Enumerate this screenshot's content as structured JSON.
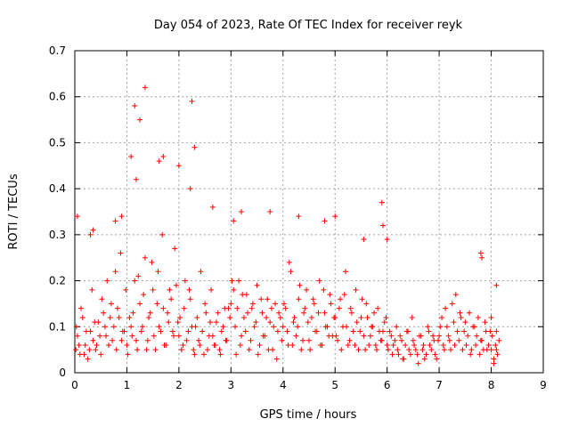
{
  "chart_data": {
    "type": "scatter",
    "title": "Day 054 of 2023, Rate Of TEC Index for receiver reyk",
    "xlabel": "GPS time / hours",
    "ylabel": "ROTI / TECUs",
    "xlim": [
      0,
      9
    ],
    "ylim": [
      0,
      0.7
    ],
    "x_ticks": [
      "0",
      "1",
      "2",
      "3",
      "4",
      "5",
      "6",
      "7",
      "8",
      "9"
    ],
    "y_ticks": [
      "0",
      "0.1",
      "0.2",
      "0.3",
      "0.4",
      "0.5",
      "0.6",
      "0.7"
    ],
    "grid": true,
    "marker": "+",
    "series": [
      {
        "name": "ROTI",
        "color": "#ff0000",
        "x": [
          0.02,
          0.05,
          0.1,
          0.15,
          0.2,
          0.25,
          0.3,
          0.35,
          0.4,
          0.45,
          0.5,
          0.55,
          0.6,
          0.65,
          0.7,
          0.75,
          0.8,
          0.85,
          0.9,
          0.95,
          0.03,
          0.08,
          0.12,
          0.18,
          0.22,
          0.28,
          0.33,
          0.38,
          0.42,
          0.48,
          0.52,
          0.58,
          0.62,
          0.68,
          0.72,
          0.78,
          0.82,
          0.88,
          0.92,
          0.98,
          1.0,
          1.05,
          1.1,
          1.15,
          1.2,
          1.25,
          1.3,
          1.35,
          1.4,
          1.45,
          1.5,
          1.55,
          1.6,
          1.65,
          1.7,
          1.75,
          1.8,
          1.85,
          1.9,
          1.95,
          1.02,
          1.08,
          1.12,
          1.18,
          1.22,
          1.28,
          1.32,
          1.38,
          1.42,
          1.48,
          1.52,
          1.58,
          1.62,
          1.68,
          1.72,
          1.78,
          1.82,
          1.88,
          1.92,
          1.98,
          2.0,
          2.05,
          2.1,
          2.15,
          2.2,
          2.25,
          2.3,
          2.35,
          2.4,
          2.45,
          2.5,
          2.55,
          2.6,
          2.65,
          2.7,
          2.75,
          2.8,
          2.85,
          2.9,
          2.95,
          2.02,
          2.08,
          2.12,
          2.18,
          2.22,
          2.28,
          2.32,
          2.38,
          2.42,
          2.48,
          2.52,
          2.58,
          2.62,
          2.68,
          2.72,
          2.78,
          2.82,
          2.88,
          2.92,
          2.98,
          3.0,
          3.05,
          3.1,
          3.15,
          3.2,
          3.25,
          3.3,
          3.35,
          3.4,
          3.45,
          3.5,
          3.55,
          3.6,
          3.65,
          3.7,
          3.75,
          3.8,
          3.85,
          3.9,
          3.95,
          3.02,
          3.08,
          3.12,
          3.18,
          3.22,
          3.28,
          3.32,
          3.38,
          3.42,
          3.48,
          3.52,
          3.58,
          3.62,
          3.68,
          3.72,
          3.78,
          3.82,
          3.88,
          3.92,
          3.98,
          4.0,
          4.05,
          4.1,
          4.15,
          4.2,
          4.25,
          4.3,
          4.35,
          4.4,
          4.45,
          4.5,
          4.55,
          4.6,
          4.65,
          4.7,
          4.75,
          4.8,
          4.85,
          4.9,
          4.95,
          4.02,
          4.08,
          4.12,
          4.18,
          4.22,
          4.28,
          4.32,
          4.38,
          4.42,
          4.48,
          4.52,
          4.58,
          4.62,
          4.68,
          4.72,
          4.78,
          4.82,
          4.88,
          4.92,
          4.98,
          5.0,
          5.05,
          5.1,
          5.15,
          5.2,
          5.25,
          5.3,
          5.35,
          5.4,
          5.45,
          5.5,
          5.55,
          5.6,
          5.65,
          5.7,
          5.75,
          5.8,
          5.85,
          5.9,
          5.95,
          5.02,
          5.08,
          5.12,
          5.18,
          5.22,
          5.28,
          5.32,
          5.38,
          5.42,
          5.48,
          5.52,
          5.58,
          5.62,
          5.68,
          5.72,
          5.78,
          5.82,
          5.88,
          5.92,
          5.98,
          6.0,
          6.05,
          6.1,
          6.15,
          6.2,
          6.25,
          6.3,
          6.35,
          6.4,
          6.45,
          6.5,
          6.55,
          6.6,
          6.65,
          6.7,
          6.75,
          6.8,
          6.85,
          6.9,
          6.95,
          6.02,
          6.08,
          6.12,
          6.18,
          6.22,
          6.28,
          6.32,
          6.38,
          6.42,
          6.48,
          6.52,
          6.58,
          6.62,
          6.68,
          6.72,
          6.78,
          6.82,
          6.88,
          6.92,
          6.98,
          7.0,
          7.05,
          7.1,
          7.15,
          7.2,
          7.25,
          7.3,
          7.35,
          7.4,
          7.45,
          7.5,
          7.55,
          7.6,
          7.65,
          7.7,
          7.75,
          7.8,
          7.85,
          7.9,
          7.95,
          7.02,
          7.08,
          7.12,
          7.18,
          7.22,
          7.28,
          7.32,
          7.38,
          7.42,
          7.48,
          7.52,
          7.58,
          7.62,
          7.68,
          7.72,
          7.78,
          7.82,
          7.88,
          7.92,
          7.98,
          8.0,
          8.02,
          8.05,
          8.08,
          8.1,
          8.12,
          8.15,
          8.0,
          8.05,
          8.1,
          0.05,
          0.35,
          0.9,
          1.35,
          1.15,
          1.25,
          1.7,
          2.0,
          2.25,
          2.3,
          1.08,
          1.18,
          0.78,
          1.62,
          2.22,
          3.2,
          3.75,
          4.3,
          5.0,
          5.9,
          5.92,
          6.0,
          7.8,
          7.82,
          8.1,
          2.65,
          3.05,
          4.8,
          5.55,
          0.3
        ],
        "y": [
          0.05,
          0.08,
          0.04,
          0.12,
          0.06,
          0.03,
          0.09,
          0.07,
          0.05,
          0.11,
          0.04,
          0.13,
          0.08,
          0.06,
          0.15,
          0.1,
          0.05,
          0.12,
          0.07,
          0.09,
          0.1,
          0.06,
          0.14,
          0.04,
          0.09,
          0.05,
          0.18,
          0.11,
          0.06,
          0.08,
          0.16,
          0.1,
          0.2,
          0.12,
          0.07,
          0.22,
          0.14,
          0.26,
          0.09,
          0.18,
          0.06,
          0.12,
          0.08,
          0.2,
          0.05,
          0.15,
          0.1,
          0.25,
          0.07,
          0.13,
          0.18,
          0.05,
          0.22,
          0.09,
          0.14,
          0.06,
          0.11,
          0.16,
          0.08,
          0.19,
          0.04,
          0.1,
          0.13,
          0.07,
          0.21,
          0.09,
          0.17,
          0.05,
          0.12,
          0.24,
          0.08,
          0.15,
          0.1,
          0.3,
          0.06,
          0.13,
          0.18,
          0.09,
          0.27,
          0.11,
          0.08,
          0.05,
          0.14,
          0.07,
          0.18,
          0.1,
          0.04,
          0.12,
          0.06,
          0.09,
          0.15,
          0.05,
          0.11,
          0.08,
          0.06,
          0.13,
          0.04,
          0.1,
          0.07,
          0.14,
          0.12,
          0.06,
          0.2,
          0.09,
          0.16,
          0.05,
          0.1,
          0.07,
          0.22,
          0.04,
          0.13,
          0.08,
          0.18,
          0.06,
          0.11,
          0.05,
          0.09,
          0.14,
          0.07,
          0.12,
          0.15,
          0.18,
          0.04,
          0.2,
          0.08,
          0.12,
          0.17,
          0.05,
          0.14,
          0.1,
          0.19,
          0.06,
          0.13,
          0.08,
          0.16,
          0.11,
          0.05,
          0.15,
          0.09,
          0.12,
          0.2,
          0.1,
          0.14,
          0.06,
          0.17,
          0.09,
          0.13,
          0.07,
          0.15,
          0.11,
          0.04,
          0.16,
          0.08,
          0.12,
          0.05,
          0.14,
          0.1,
          0.03,
          0.13,
          0.07,
          0.1,
          0.14,
          0.06,
          0.22,
          0.11,
          0.08,
          0.16,
          0.05,
          0.13,
          0.18,
          0.07,
          0.12,
          0.15,
          0.09,
          0.2,
          0.06,
          0.13,
          0.1,
          0.17,
          0.08,
          0.15,
          0.09,
          0.24,
          0.06,
          0.12,
          0.1,
          0.19,
          0.07,
          0.14,
          0.11,
          0.05,
          0.16,
          0.09,
          0.13,
          0.06,
          0.18,
          0.1,
          0.08,
          0.15,
          0.12,
          0.12,
          0.07,
          0.16,
          0.1,
          0.22,
          0.06,
          0.14,
          0.09,
          0.18,
          0.05,
          0.12,
          0.08,
          0.15,
          0.06,
          0.1,
          0.13,
          0.05,
          0.09,
          0.07,
          0.11,
          0.08,
          0.14,
          0.05,
          0.17,
          0.1,
          0.07,
          0.13,
          0.06,
          0.11,
          0.09,
          0.16,
          0.05,
          0.12,
          0.08,
          0.1,
          0.06,
          0.14,
          0.07,
          0.09,
          0.12,
          0.06,
          0.09,
          0.04,
          0.07,
          0.05,
          0.08,
          0.03,
          0.06,
          0.09,
          0.04,
          0.07,
          0.05,
          0.02,
          0.08,
          0.06,
          0.04,
          0.09,
          0.05,
          0.07,
          0.03,
          0.05,
          0.08,
          0.06,
          0.1,
          0.04,
          0.07,
          0.03,
          0.09,
          0.05,
          0.12,
          0.06,
          0.04,
          0.08,
          0.05,
          0.03,
          0.1,
          0.06,
          0.08,
          0.04,
          0.07,
          0.08,
          0.12,
          0.05,
          0.1,
          0.07,
          0.15,
          0.06,
          0.09,
          0.13,
          0.05,
          0.11,
          0.08,
          0.04,
          0.1,
          0.06,
          0.12,
          0.07,
          0.05,
          0.09,
          0.06,
          0.1,
          0.06,
          0.14,
          0.08,
          0.05,
          0.11,
          0.17,
          0.07,
          0.12,
          0.09,
          0.06,
          0.13,
          0.05,
          0.1,
          0.08,
          0.04,
          0.07,
          0.11,
          0.05,
          0.09,
          0.05,
          0.08,
          0.03,
          0.06,
          0.09,
          0.04,
          0.07,
          0.12,
          0.02,
          0.05,
          0.34,
          0.31,
          0.34,
          0.62,
          0.58,
          0.55,
          0.47,
          0.45,
          0.59,
          0.49,
          0.47,
          0.42,
          0.33,
          0.46,
          0.4,
          0.35,
          0.35,
          0.34,
          0.34,
          0.37,
          0.32,
          0.29,
          0.26,
          0.25,
          0.19,
          0.36,
          0.33,
          0.33,
          0.29,
          0.3
        ]
      }
    ]
  }
}
